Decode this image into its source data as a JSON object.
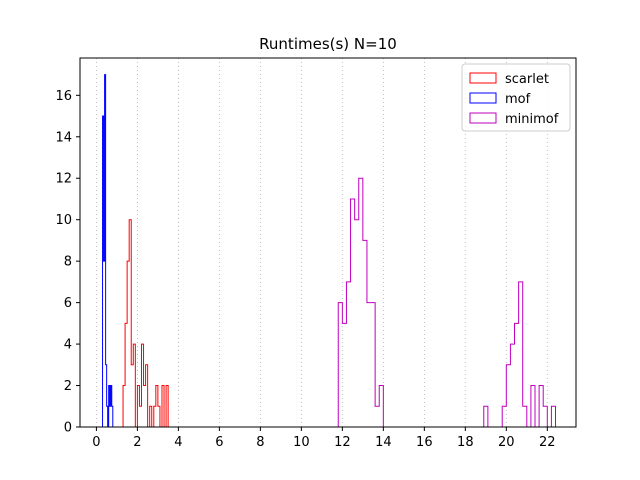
{
  "chart_data": {
    "type": "histogram",
    "title": "Runtimes(s) N=10",
    "xlabel": "",
    "ylabel": "",
    "xlim": [
      -0.8,
      23.4
    ],
    "ylim": [
      0,
      17.8
    ],
    "xticks": [
      0,
      2,
      4,
      6,
      8,
      10,
      12,
      14,
      16,
      18,
      20,
      22
    ],
    "yticks": [
      0,
      2,
      4,
      6,
      8,
      10,
      12,
      14,
      16
    ],
    "grid": "vertical-dotted",
    "legend_position": "top-right",
    "series": [
      {
        "name": "scarlet",
        "color": "#ff0000",
        "bins": [
          {
            "x0": 1.3,
            "x1": 1.4,
            "count": 2
          },
          {
            "x0": 1.4,
            "x1": 1.5,
            "count": 5
          },
          {
            "x0": 1.5,
            "x1": 1.6,
            "count": 8
          },
          {
            "x0": 1.6,
            "x1": 1.7,
            "count": 10
          },
          {
            "x0": 1.7,
            "x1": 1.8,
            "count": 3
          },
          {
            "x0": 1.8,
            "x1": 1.9,
            "count": 4
          },
          {
            "x0": 1.9,
            "x1": 2.0,
            "count": 0
          },
          {
            "x0": 2.0,
            "x1": 2.1,
            "count": 2
          },
          {
            "x0": 2.1,
            "x1": 2.2,
            "count": 1
          },
          {
            "x0": 2.2,
            "x1": 2.3,
            "count": 4
          },
          {
            "x0": 2.3,
            "x1": 2.4,
            "count": 2
          },
          {
            "x0": 2.4,
            "x1": 2.5,
            "count": 3
          },
          {
            "x0": 2.5,
            "x1": 2.6,
            "count": 0
          },
          {
            "x0": 2.6,
            "x1": 2.7,
            "count": 1
          },
          {
            "x0": 2.7,
            "x1": 2.8,
            "count": 0
          },
          {
            "x0": 2.8,
            "x1": 2.9,
            "count": 1
          },
          {
            "x0": 2.9,
            "x1": 3.0,
            "count": 2
          },
          {
            "x0": 3.0,
            "x1": 3.1,
            "count": 1
          },
          {
            "x0": 3.1,
            "x1": 3.2,
            "count": 0
          },
          {
            "x0": 3.2,
            "x1": 3.3,
            "count": 2
          },
          {
            "x0": 3.3,
            "x1": 3.4,
            "count": 0
          },
          {
            "x0": 3.4,
            "x1": 3.5,
            "count": 2
          }
        ]
      },
      {
        "name": "mof",
        "color": "#0000ff",
        "bins": [
          {
            "x0": 0.3,
            "x1": 0.35,
            "count": 15
          },
          {
            "x0": 0.35,
            "x1": 0.4,
            "count": 8
          },
          {
            "x0": 0.4,
            "x1": 0.45,
            "count": 17
          },
          {
            "x0": 0.45,
            "x1": 0.5,
            "count": 3
          },
          {
            "x0": 0.5,
            "x1": 0.55,
            "count": 1
          },
          {
            "x0": 0.55,
            "x1": 0.6,
            "count": 0
          },
          {
            "x0": 0.6,
            "x1": 0.65,
            "count": 2
          },
          {
            "x0": 0.65,
            "x1": 0.7,
            "count": 1
          },
          {
            "x0": 0.7,
            "x1": 0.75,
            "count": 2
          },
          {
            "x0": 0.75,
            "x1": 0.8,
            "count": 1
          }
        ]
      },
      {
        "name": "minimof",
        "color": "#bf00bf",
        "bins": [
          {
            "x0": 11.8,
            "x1": 12.0,
            "count": 6
          },
          {
            "x0": 12.0,
            "x1": 12.2,
            "count": 5
          },
          {
            "x0": 12.2,
            "x1": 12.4,
            "count": 7
          },
          {
            "x0": 12.4,
            "x1": 12.6,
            "count": 11
          },
          {
            "x0": 12.6,
            "x1": 12.8,
            "count": 10
          },
          {
            "x0": 12.8,
            "x1": 13.0,
            "count": 12
          },
          {
            "x0": 13.0,
            "x1": 13.2,
            "count": 9
          },
          {
            "x0": 13.2,
            "x1": 13.6,
            "count": 6
          },
          {
            "x0": 13.6,
            "x1": 13.8,
            "count": 1
          },
          {
            "x0": 13.8,
            "x1": 14.0,
            "count": 2
          },
          {
            "x0": 18.9,
            "x1": 19.1,
            "count": 1
          },
          {
            "x0": 19.1,
            "x1": 19.8,
            "count": 0
          },
          {
            "x0": 19.8,
            "x1": 20.0,
            "count": 1
          },
          {
            "x0": 20.0,
            "x1": 20.2,
            "count": 3
          },
          {
            "x0": 20.2,
            "x1": 20.4,
            "count": 4
          },
          {
            "x0": 20.4,
            "x1": 20.6,
            "count": 5
          },
          {
            "x0": 20.6,
            "x1": 20.8,
            "count": 7
          },
          {
            "x0": 20.8,
            "x1": 21.0,
            "count": 1
          },
          {
            "x0": 21.0,
            "x1": 21.2,
            "count": 0
          },
          {
            "x0": 21.2,
            "x1": 21.4,
            "count": 2
          },
          {
            "x0": 21.4,
            "x1": 21.6,
            "count": 0
          },
          {
            "x0": 21.6,
            "x1": 21.8,
            "count": 2
          },
          {
            "x0": 21.8,
            "x1": 22.0,
            "count": 1
          },
          {
            "x0": 22.0,
            "x1": 22.2,
            "count": 0
          },
          {
            "x0": 22.2,
            "x1": 22.4,
            "count": 1
          }
        ]
      }
    ]
  }
}
